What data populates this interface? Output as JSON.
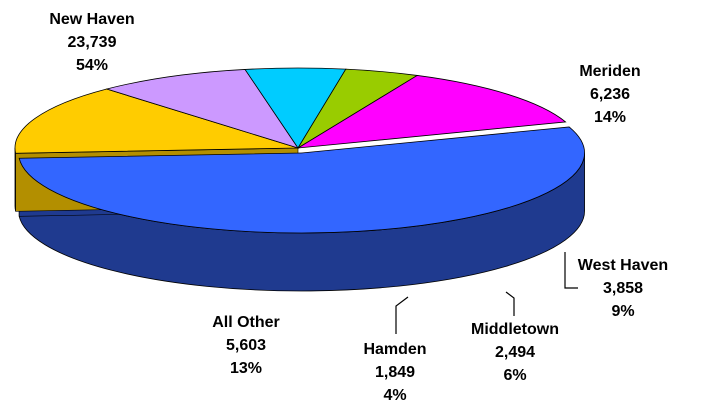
{
  "chart_data": {
    "type": "pie",
    "style": "3d-exploded",
    "title": "",
    "legend": "none",
    "slices": [
      {
        "name": "New Haven",
        "value": 23739,
        "percent": "54%",
        "value_label": "23,739",
        "color": "#3366FF",
        "side_color": "#1F3A8F"
      },
      {
        "name": "Meriden",
        "value": 6236,
        "percent": "14%",
        "value_label": "6,236",
        "color": "#FFCC00",
        "side_color": "#B38F00"
      },
      {
        "name": "West Haven",
        "value": 3858,
        "percent": "9%",
        "value_label": "3,858",
        "color": "#CC99FF",
        "side_color": "#664C80"
      },
      {
        "name": "Middletown",
        "value": 2494,
        "percent": "6%",
        "value_label": "2,494",
        "color": "#00CCFF",
        "side_color": "#006C85"
      },
      {
        "name": "Hamden",
        "value": 1849,
        "percent": "4%",
        "value_label": "1,849",
        "color": "#99CC00",
        "side_color": "#4D6600"
      },
      {
        "name": "All Other",
        "value": 5603,
        "percent": "13%",
        "value_label": "5,603",
        "color": "#FF00FF",
        "side_color": "#7F007F"
      }
    ]
  }
}
